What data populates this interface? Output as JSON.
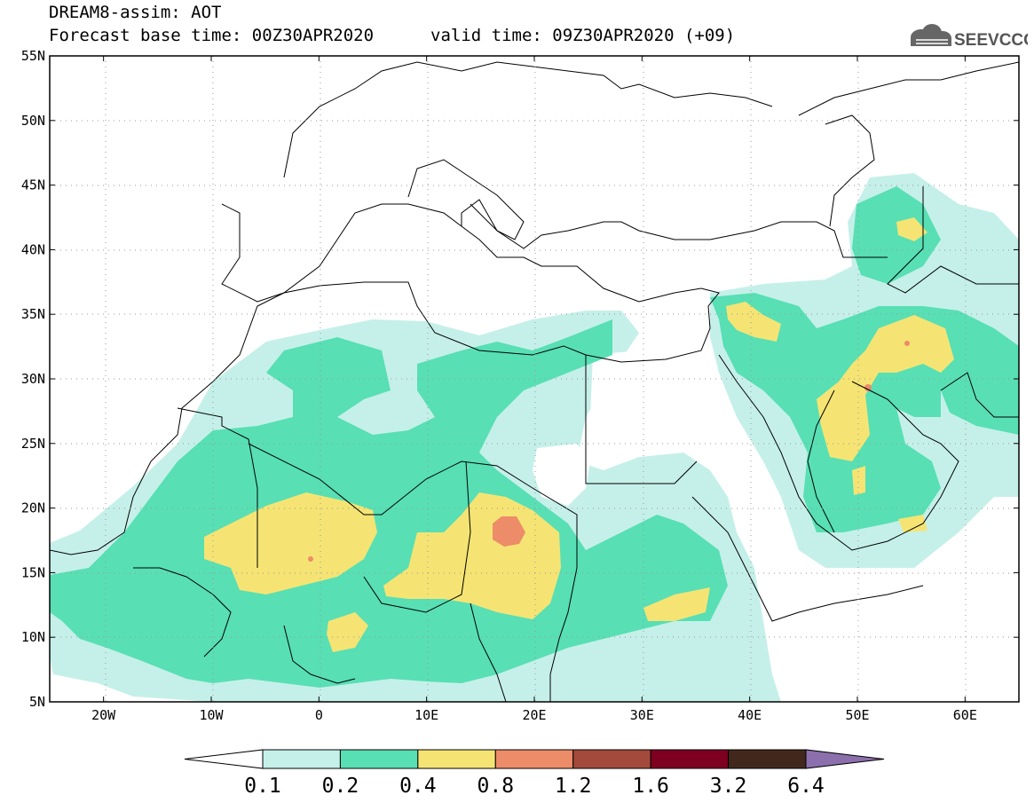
{
  "title": {
    "line1": "DREAM8-assim: AOT",
    "line2": "Forecast base time: 00Z30APR2020",
    "valid": "valid time: 09Z30APR2020 (+09)"
  },
  "logo": {
    "text": "SEEVCCC",
    "icon": "cloud-icon"
  },
  "map": {
    "lon_range": [
      -25,
      65
    ],
    "lat_range": [
      5,
      55
    ],
    "lat_ticks": [
      {
        "value": 55,
        "label": "55N"
      },
      {
        "value": 50,
        "label": "50N"
      },
      {
        "value": 45,
        "label": "45N"
      },
      {
        "value": 40,
        "label": "40N"
      },
      {
        "value": 35,
        "label": "35N"
      },
      {
        "value": 30,
        "label": "30N"
      },
      {
        "value": 25,
        "label": "25N"
      },
      {
        "value": 20,
        "label": "20N"
      },
      {
        "value": 15,
        "label": "15N"
      },
      {
        "value": 10,
        "label": "10N"
      },
      {
        "value": 5,
        "label": "5N"
      }
    ],
    "lon_ticks": [
      {
        "value": -20,
        "label": "20W"
      },
      {
        "value": -10,
        "label": "10W"
      },
      {
        "value": 0,
        "label": "0"
      },
      {
        "value": 10,
        "label": "10E"
      },
      {
        "value": 20,
        "label": "20E"
      },
      {
        "value": 30,
        "label": "30E"
      },
      {
        "value": 40,
        "label": "40E"
      },
      {
        "value": 50,
        "label": "50E"
      },
      {
        "value": 60,
        "label": "60E"
      }
    ],
    "grid": "dotted"
  },
  "legend": {
    "labels": [
      "0.1",
      "0.2",
      "0.4",
      "0.8",
      "1.2",
      "1.6",
      "3.2",
      "6.4"
    ],
    "colors": [
      "#ffffff",
      "#c5f0e9",
      "#58dfb4",
      "#f5e474",
      "#ec8c68",
      "#a34a3c",
      "#7e0020",
      "#42281c",
      "#8c6fad"
    ]
  }
}
